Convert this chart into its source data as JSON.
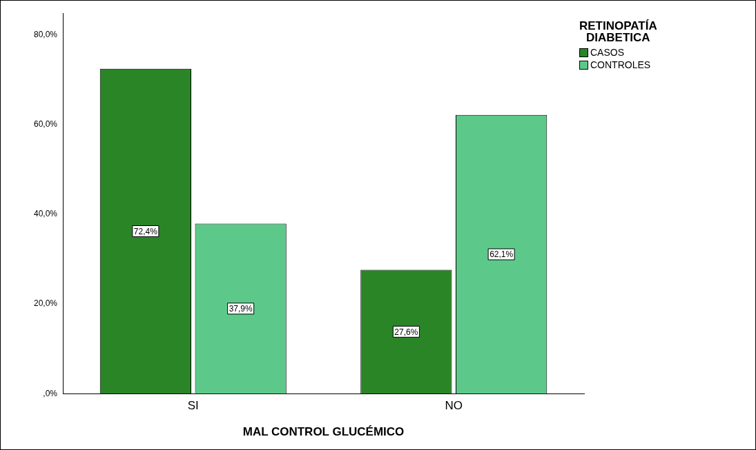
{
  "chart_data": {
    "type": "bar",
    "xlabel": "MAL CONTROL GLUCÉMICO",
    "legend_title": "RETINOPATÍA\nDIABETICA",
    "categories": [
      "SI",
      "NO"
    ],
    "series": [
      {
        "name": "CASOS",
        "color": "#2a8527",
        "values": [
          72.4,
          27.6
        ],
        "value_labels": [
          "72,4%",
          "27,6%"
        ]
      },
      {
        "name": "CONTROLES",
        "color": "#5cc98a",
        "values": [
          37.9,
          62.1
        ],
        "value_labels": [
          "37,9%",
          "62,1%"
        ]
      }
    ],
    "ylim": [
      0,
      84.8
    ],
    "yticks": [
      {
        "value": 0,
        "label": ",0%"
      },
      {
        "value": 20,
        "label": "20,0%"
      },
      {
        "value": 40,
        "label": "40,0%"
      },
      {
        "value": 60,
        "label": "60,0%"
      },
      {
        "value": 80,
        "label": "80,0%"
      }
    ],
    "grid": false,
    "legend": "top right"
  }
}
